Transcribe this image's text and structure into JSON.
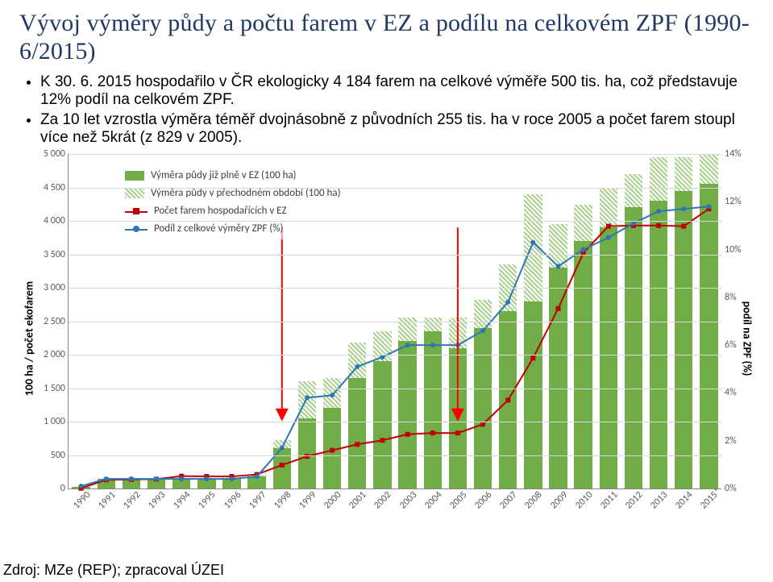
{
  "title": "Vývoj výměry půdy a počtu farem v EZ a podílu na celkovém ZPF (1990-6/2015)",
  "bullets": [
    "K 30. 6. 2015 hospodařilo v ČR ekologicky 4 184 farem na celkové výměře 500 tis. ha, což představuje 12% podíl na celkovém ZPF.",
    "Za 10 let vzrostla výměra téměř dvojnásobně z původních 255 tis. ha v roce 2005 a počet farem stoupl více než 5krát (z 829 v 2005)."
  ],
  "source": "Zdroj: MZe (REP); zpracoval ÚZEI",
  "chart": {
    "type": "combo-bar-line",
    "y_label": "100 ha / počet ekofarem",
    "y2_label": "podíl na ZPF (%)",
    "categories": [
      "1990",
      "1991",
      "1992",
      "1993",
      "1994",
      "1995",
      "1996",
      "1997",
      "1998",
      "1999",
      "2000",
      "2001",
      "2002",
      "2003",
      "2004",
      "2005",
      "2006",
      "2007",
      "2008",
      "2009",
      "2010",
      "2011",
      "2012",
      "2013",
      "2014",
      "2015*"
    ],
    "series": {
      "area_full_EZ": {
        "label": "Výměra půdy již plně v EZ (100 ha)",
        "color": "#70ad47",
        "values": [
          30,
          150,
          150,
          140,
          150,
          145,
          150,
          180,
          600,
          1050,
          1200,
          1650,
          1900,
          2200,
          2350,
          2100,
          2400,
          2650,
          2800,
          3300,
          3700,
          3900,
          4200,
          4300,
          4450,
          4550
        ]
      },
      "area_transition": {
        "label": "Výměra půdy v přechodném období (100 ha)",
        "color_pattern": "hatch",
        "base_color": "#a9d18e",
        "values": [
          0,
          0,
          0,
          10,
          10,
          10,
          20,
          30,
          120,
          550,
          450,
          530,
          450,
          350,
          200,
          460,
          420,
          700,
          1600,
          650,
          540,
          580,
          500,
          650,
          500,
          450
        ]
      },
      "farms": {
        "label": "Počet farem hospodařících v EZ",
        "type": "line",
        "color": "#c00000",
        "marker": "square",
        "values": [
          3,
          130,
          135,
          140,
          185,
          180,
          180,
          210,
          350,
          480,
          570,
          660,
          720,
          810,
          830,
          829,
          960,
          1320,
          1950,
          2690,
          3520,
          3920,
          3930,
          3930,
          3920,
          4180
        ]
      },
      "zpf_share": {
        "label": "Podíl z celkové výměry ZPF (%)",
        "type": "line",
        "color": "#2e75b6",
        "marker": "circle",
        "y2_values_pct": [
          0.1,
          0.4,
          0.4,
          0.4,
          0.4,
          0.4,
          0.4,
          0.5,
          1.7,
          3.8,
          3.9,
          5.1,
          5.5,
          6.0,
          6.0,
          6.0,
          6.6,
          7.8,
          10.3,
          9.3,
          10.0,
          10.5,
          11.1,
          11.6,
          11.7,
          11.8
        ]
      }
    },
    "arrow_columns": [
      8,
      15
    ],
    "y_axis": {
      "min": 0,
      "max": 5000,
      "step": 500,
      "tick_labels": [
        "0",
        "500",
        "1 000",
        "1 500",
        "2 000",
        "2 500",
        "3 000",
        "3 500",
        "4 000",
        "4 500",
        "5 000"
      ]
    },
    "y2_axis": {
      "min": 0,
      "max": 14,
      "step": 2,
      "suffix": "%"
    },
    "grid_color": "#d9d9d9",
    "background_color": "#ffffff",
    "font_family": "Calibri",
    "tick_fontsize_pt": 9,
    "label_fontsize_pt": 11,
    "legend_fontsize_pt": 10,
    "bar_width_ratio": 0.72,
    "line_width": 2,
    "marker_size": 6
  },
  "colors": {
    "title": "#1f3864",
    "bar_solid": "#70ad47",
    "bar_hatch_fg": "#a9d18e",
    "bar_hatch_bg": "#ffffff",
    "line_red": "#c00000",
    "line_blue": "#2e75b6",
    "grid": "#d9d9d9",
    "axis": "#888888",
    "tick_text": "#595959",
    "arrow": "#ff0000"
  }
}
